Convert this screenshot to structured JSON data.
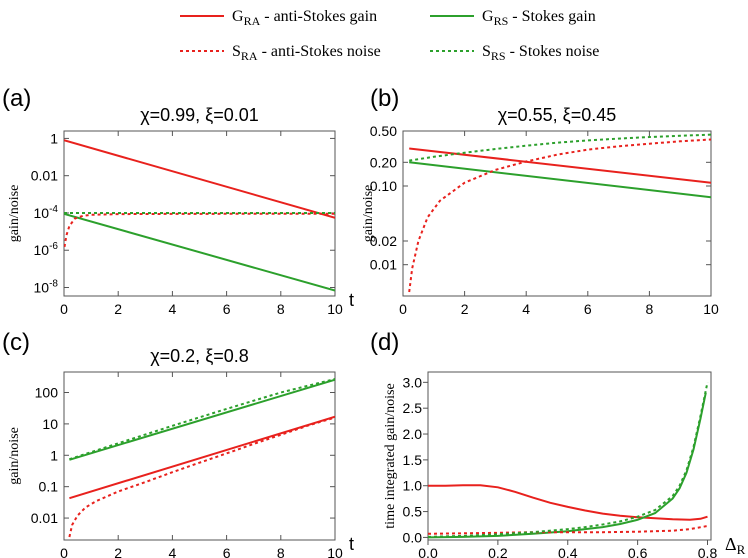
{
  "legend": {
    "items": [
      {
        "main": "G",
        "sub": "RA",
        "rest": " - anti-Stokes gain",
        "color": "#e8211d",
        "dash": false
      },
      {
        "main": "G",
        "sub": "RS",
        "rest": " - Stokes gain",
        "color": "#2ca02c",
        "dash": false
      },
      {
        "main": "S",
        "sub": "RA",
        "rest": " - anti-Stokes noise",
        "color": "#e8211d",
        "dash": true
      },
      {
        "main": "S",
        "sub": "RS",
        "rest": " - Stokes noise",
        "color": "#2ca02c",
        "dash": true
      }
    ]
  },
  "chart_data": [
    {
      "panel_label": "(a)",
      "title": "χ=0.99,  ξ=0.01",
      "type": "line",
      "xlabel": "t",
      "ylabel": "gain/noise",
      "y_scale": "log",
      "xlim": [
        0,
        10
      ],
      "ylim": [
        3.5e-09,
        2.5
      ],
      "x_ticks": [
        {
          "v": 0,
          "label": "0"
        },
        {
          "v": 2,
          "label": "2"
        },
        {
          "v": 4,
          "label": "4"
        },
        {
          "v": 6,
          "label": "6"
        },
        {
          "v": 8,
          "label": "8"
        },
        {
          "v": 10,
          "label": "10"
        }
      ],
      "y_ticks": [
        {
          "v": 1,
          "base": "1",
          "exp": ""
        },
        {
          "v": 0.01,
          "base": "0.01",
          "exp": ""
        },
        {
          "v": 0.0001,
          "base": "10",
          "exp": "-4"
        },
        {
          "v": 1e-06,
          "base": "10",
          "exp": "-6"
        },
        {
          "v": 1e-08,
          "base": "10",
          "exp": "-8"
        }
      ],
      "series": [
        {
          "ref": "G_RA",
          "color": "#e8211d",
          "dash": false,
          "x": [
            0,
            10
          ],
          "y": [
            0.8,
            5.5e-05
          ]
        },
        {
          "ref": "G_RS",
          "color": "#2ca02c",
          "dash": false,
          "x": [
            0,
            10
          ],
          "y": [
            9e-05,
            6.8e-09
          ]
        },
        {
          "ref": "S_RA",
          "color": "#e8211d",
          "dash": true,
          "x": [
            0.02,
            0.05,
            0.1,
            0.2,
            0.4,
            0.7,
            1.0,
            2,
            4,
            6,
            8,
            10
          ],
          "y": [
            1.5e-06,
            3e-06,
            7e-06,
            2e-05,
            5e-05,
            7e-05,
            8e-05,
            8.7e-05,
            8.9e-05,
            9e-05,
            9e-05,
            9e-05
          ]
        },
        {
          "ref": "S_RS",
          "color": "#2ca02c",
          "dash": true,
          "x": [
            0,
            2,
            4,
            6,
            8,
            10
          ],
          "y": [
            0.0001,
            0.0001,
            0.0001,
            0.0001,
            0.0001,
            0.0001
          ]
        }
      ]
    },
    {
      "panel_label": "(b)",
      "title": "χ=0.55,  ξ=0.45",
      "type": "line",
      "xlabel": "",
      "ylabel": "gain/noise",
      "y_scale": "log",
      "xlim": [
        0,
        10
      ],
      "ylim": [
        0.004,
        0.5
      ],
      "x_ticks": [
        {
          "v": 0,
          "label": "0"
        },
        {
          "v": 2,
          "label": "2"
        },
        {
          "v": 4,
          "label": "4"
        },
        {
          "v": 6,
          "label": "6"
        },
        {
          "v": 8,
          "label": "8"
        },
        {
          "v": 10,
          "label": "10"
        }
      ],
      "y_ticks": [
        {
          "v": 0.5,
          "base": "0.50",
          "exp": ""
        },
        {
          "v": 0.2,
          "base": "0.20",
          "exp": ""
        },
        {
          "v": 0.1,
          "base": "0.10",
          "exp": ""
        },
        {
          "v": 0.02,
          "base": "0.02",
          "exp": ""
        },
        {
          "v": 0.01,
          "base": "0.01",
          "exp": ""
        }
      ],
      "series": [
        {
          "ref": "G_RA",
          "color": "#e8211d",
          "dash": false,
          "x": [
            0.2,
            10
          ],
          "y": [
            0.3,
            0.11
          ]
        },
        {
          "ref": "G_RS",
          "color": "#2ca02c",
          "dash": false,
          "x": [
            0.2,
            10
          ],
          "y": [
            0.2,
            0.072
          ]
        },
        {
          "ref": "S_RA",
          "color": "#e8211d",
          "dash": true,
          "x": [
            0.2,
            0.3,
            0.5,
            0.8,
            1.2,
            2,
            3,
            4,
            5,
            6,
            7,
            8,
            9,
            10
          ],
          "y": [
            0.0045,
            0.009,
            0.02,
            0.04,
            0.065,
            0.11,
            0.16,
            0.205,
            0.25,
            0.29,
            0.32,
            0.345,
            0.37,
            0.39
          ]
        },
        {
          "ref": "S_RS",
          "color": "#2ca02c",
          "dash": true,
          "x": [
            0.2,
            1,
            2,
            3,
            4,
            5,
            6,
            7,
            8,
            9,
            10
          ],
          "y": [
            0.21,
            0.235,
            0.265,
            0.295,
            0.325,
            0.355,
            0.38,
            0.4,
            0.42,
            0.435,
            0.45
          ]
        }
      ]
    },
    {
      "panel_label": "(c)",
      "title": "χ=0.2,  ξ=0.8",
      "type": "line",
      "xlabel": "t",
      "ylabel": "gain/noise",
      "y_scale": "log",
      "xlim": [
        0,
        10
      ],
      "ylim": [
        0.002,
        450
      ],
      "x_ticks": [
        {
          "v": 0,
          "label": "0"
        },
        {
          "v": 2,
          "label": "2"
        },
        {
          "v": 4,
          "label": "4"
        },
        {
          "v": 6,
          "label": "6"
        },
        {
          "v": 8,
          "label": "8"
        },
        {
          "v": 10,
          "label": "10"
        }
      ],
      "y_ticks": [
        {
          "v": 100,
          "base": "100",
          "exp": ""
        },
        {
          "v": 10,
          "base": "10",
          "exp": ""
        },
        {
          "v": 1,
          "base": "1",
          "exp": ""
        },
        {
          "v": 0.1,
          "base": "0.1",
          "exp": ""
        },
        {
          "v": 0.01,
          "base": "0.01",
          "exp": ""
        }
      ],
      "series": [
        {
          "ref": "G_RA",
          "color": "#e8211d",
          "dash": false,
          "x": [
            0.2,
            10
          ],
          "y": [
            0.043,
            17
          ]
        },
        {
          "ref": "G_RS",
          "color": "#2ca02c",
          "dash": false,
          "x": [
            0.2,
            10
          ],
          "y": [
            0.72,
            255
          ]
        },
        {
          "ref": "S_RA",
          "color": "#e8211d",
          "dash": true,
          "x": [
            0.2,
            0.3,
            0.5,
            0.8,
            1.2,
            2,
            3,
            4,
            5,
            6,
            7,
            8,
            9,
            10
          ],
          "y": [
            0.0025,
            0.006,
            0.012,
            0.022,
            0.035,
            0.07,
            0.14,
            0.29,
            0.58,
            1.15,
            2.3,
            4.5,
            8.8,
            16
          ]
        },
        {
          "ref": "S_RS",
          "color": "#2ca02c",
          "dash": true,
          "x": [
            0.2,
            2,
            4,
            6,
            8,
            10
          ],
          "y": [
            0.75,
            2.4,
            8.7,
            30,
            100,
            270
          ]
        }
      ]
    },
    {
      "panel_label": "(d)",
      "title": "",
      "type": "line",
      "xlabel": "Δ",
      "xlabel_sub": "R",
      "ylabel": "time integrated gain/noise",
      "y_scale": "linear",
      "xlim": [
        0,
        0.81
      ],
      "ylim": [
        -0.05,
        3.2
      ],
      "x_ticks": [
        {
          "v": 0,
          "label": "0.0"
        },
        {
          "v": 0.2,
          "label": "0.2"
        },
        {
          "v": 0.4,
          "label": "0.4"
        },
        {
          "v": 0.6,
          "label": "0.6"
        },
        {
          "v": 0.8,
          "label": "0.8"
        }
      ],
      "y_ticks": [
        {
          "v": 0,
          "base": "0.0",
          "exp": ""
        },
        {
          "v": 0.5,
          "base": "0.5",
          "exp": ""
        },
        {
          "v": 1,
          "base": "1.0",
          "exp": ""
        },
        {
          "v": 1.5,
          "base": "1.5",
          "exp": ""
        },
        {
          "v": 2,
          "base": "2.0",
          "exp": ""
        },
        {
          "v": 2.5,
          "base": "2.5",
          "exp": ""
        },
        {
          "v": 3,
          "base": "3.0",
          "exp": ""
        }
      ],
      "series": [
        {
          "ref": "G_RA",
          "color": "#e8211d",
          "dash": false,
          "x": [
            0,
            0.05,
            0.1,
            0.15,
            0.2,
            0.25,
            0.3,
            0.35,
            0.4,
            0.45,
            0.5,
            0.55,
            0.6,
            0.65,
            0.7,
            0.75,
            0.78,
            0.8
          ],
          "y": [
            1.0,
            1.0,
            1.01,
            1.01,
            0.97,
            0.88,
            0.77,
            0.67,
            0.59,
            0.52,
            0.46,
            0.42,
            0.39,
            0.37,
            0.35,
            0.34,
            0.36,
            0.4
          ]
        },
        {
          "ref": "G_RS",
          "color": "#2ca02c",
          "dash": false,
          "x": [
            0,
            0.1,
            0.2,
            0.3,
            0.4,
            0.45,
            0.5,
            0.55,
            0.6,
            0.65,
            0.7,
            0.72,
            0.74,
            0.76,
            0.78,
            0.795
          ],
          "y": [
            0.0,
            0.01,
            0.03,
            0.07,
            0.12,
            0.16,
            0.2,
            0.26,
            0.34,
            0.47,
            0.75,
            0.95,
            1.25,
            1.7,
            2.3,
            2.8
          ]
        },
        {
          "ref": "S_RA",
          "color": "#e8211d",
          "dash": true,
          "x": [
            0,
            0.1,
            0.2,
            0.3,
            0.4,
            0.5,
            0.6,
            0.65,
            0.7,
            0.75,
            0.8
          ],
          "y": [
            0.07,
            0.08,
            0.09,
            0.1,
            0.1,
            0.1,
            0.11,
            0.12,
            0.13,
            0.16,
            0.22
          ]
        },
        {
          "ref": "S_RS",
          "color": "#2ca02c",
          "dash": true,
          "x": [
            0,
            0.1,
            0.2,
            0.3,
            0.4,
            0.45,
            0.5,
            0.55,
            0.6,
            0.65,
            0.7,
            0.72,
            0.74,
            0.76,
            0.78,
            0.8
          ],
          "y": [
            0.01,
            0.03,
            0.06,
            0.1,
            0.16,
            0.2,
            0.25,
            0.31,
            0.4,
            0.53,
            0.8,
            1.0,
            1.3,
            1.75,
            2.35,
            3.0
          ]
        }
      ]
    }
  ]
}
